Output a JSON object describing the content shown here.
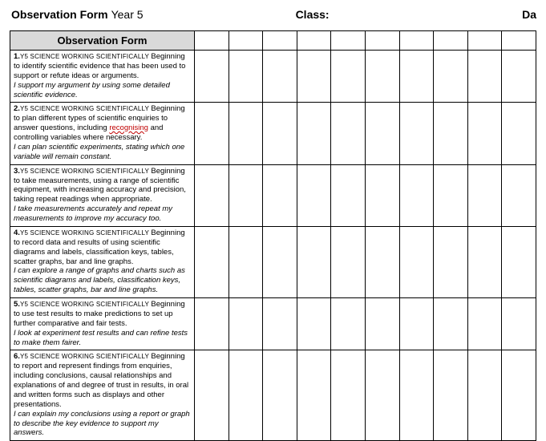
{
  "header": {
    "title": "Observation Form",
    "year": "Year 5",
    "class_label": "Class:",
    "date_label": "Da"
  },
  "table": {
    "header_label": "Observation Form",
    "blank_columns": 10,
    "rows": [
      {
        "num": "1.",
        "topic": "Y5 SCIENCE WORKING SCIENTIFICALLY",
        "lead": "Beginning to identify scientific evidence that has been used to support or refute ideas or arguments.",
        "italic": "I support my argument by using some detailed scientific evidence."
      },
      {
        "num": "2.",
        "topic": "Y5 SCIENCE WORKING SCIENTIFICALLY",
        "lead_pre": "Beginning to plan different types of scientific enquiries to answer questions, including ",
        "highlight": "recognising",
        "lead_post": " and controlling variables where necessary.",
        "italic": "I can plan scientific experiments, stating which one variable will remain constant."
      },
      {
        "num": "3.",
        "topic": "Y5 SCIENCE WORKING SCIENTIFICALLY",
        "lead": "Beginning to take measurements, using a range of scientific equipment, with increasing accuracy and precision, taking repeat readings when appropriate.",
        "italic": "I take measurements accurately and repeat my measurements to improve my accuracy too."
      },
      {
        "num": "4.",
        "topic": "Y5 SCIENCE WORKING SCIENTIFICALLY",
        "lead": "Beginning to record data and results of using scientific diagrams and labels, classification keys, tables, scatter graphs, bar and line graphs.",
        "italic": "I can explore a range of graphs and charts such as scientific diagrams and labels, classification keys, tables, scatter graphs, bar and line graphs."
      },
      {
        "num": "5.",
        "topic": "Y5 SCIENCE WORKING SCIENTIFICALLY",
        "lead": "Beginning to use test results to make predictions to set up further comparative and fair tests.",
        "italic": "I look at experiment test results and can refine tests to make them fairer."
      },
      {
        "num": "6.",
        "topic": "Y5 SCIENCE WORKING SCIENTIFICALLY",
        "lead": "Beginning to report and represent findings from enquiries, including conclusions, causal relationships and explanations of and degree of trust in results, in oral and written forms such as displays and other presentations.",
        "italic": "I can explain my conclusions using a report or graph to describe the key evidence to support my answers."
      }
    ]
  },
  "colors": {
    "header_bg": "#d9d9d9",
    "border": "#000000",
    "highlight_red": "#c00000"
  }
}
